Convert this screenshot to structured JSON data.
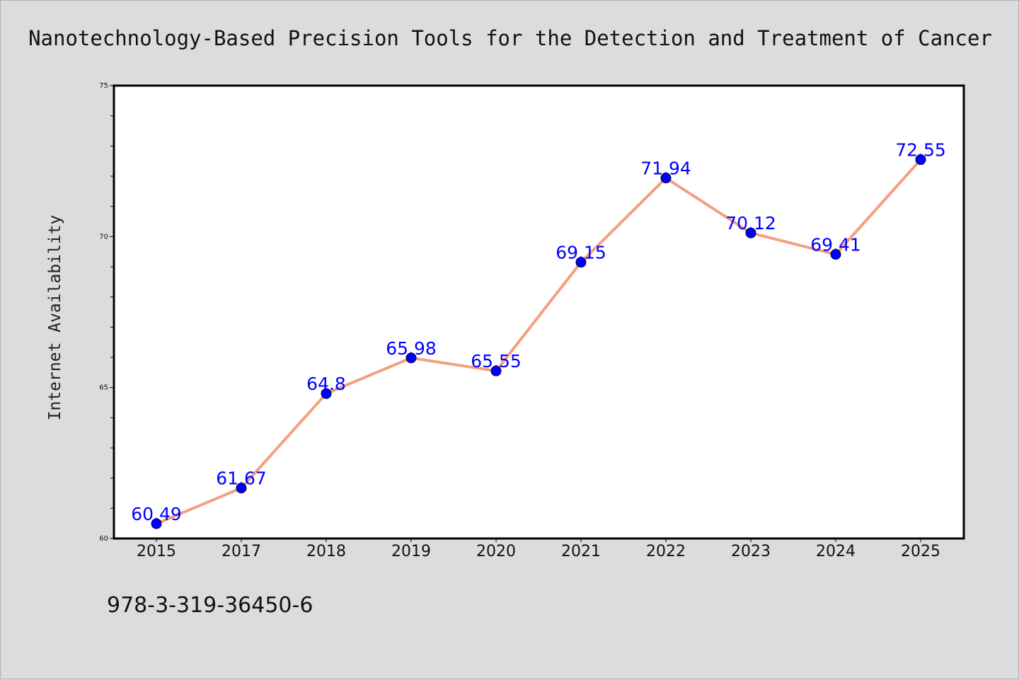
{
  "colors": {
    "background": "#dcdcdc",
    "plot_background": "#ffffff",
    "line": "#f4a07e",
    "marker": "#0000ff",
    "data_label": "#0000ff"
  },
  "footer": {
    "isbn": "978-3-319-36450-6"
  },
  "chart_data": {
    "type": "line",
    "title": "Nanotechnology-Based Precision Tools for the Detection and Treatment of Cancer",
    "xlabel": "",
    "ylabel": "Internet Availability",
    "categories": [
      "2015",
      "2017",
      "2018",
      "2019",
      "2020",
      "2021",
      "2022",
      "2023",
      "2024",
      "2025"
    ],
    "series": [
      {
        "values": [
          60.49,
          61.67,
          64.8,
          65.98,
          65.55,
          69.15,
          71.94,
          70.12,
          69.41,
          72.55
        ],
        "labels": [
          "60.49",
          "61.67",
          "64.8",
          "65.98",
          "65.55",
          "69.15",
          "71.94",
          "70.12",
          "69.41",
          "72.55"
        ]
      }
    ],
    "ylim": [
      60,
      75
    ],
    "yticks": [
      "60",
      "65",
      "70",
      "75"
    ],
    "grid": false,
    "legend": "none"
  }
}
